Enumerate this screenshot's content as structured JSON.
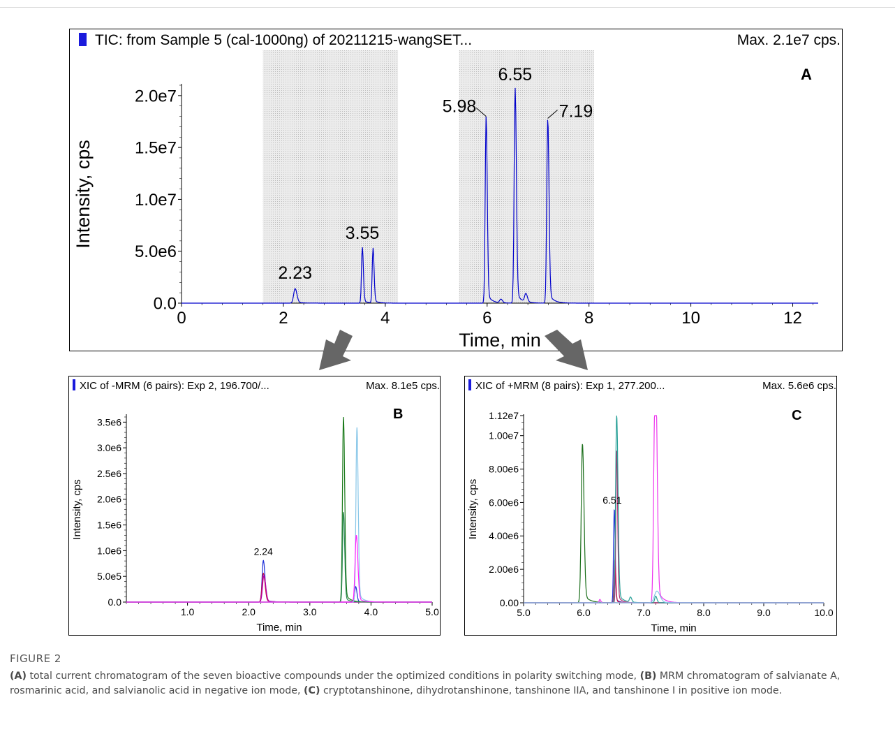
{
  "chart_data": [
    {
      "panel": "A",
      "type": "line",
      "title": "TIC: from Sample 5 (cal-1000ng) of 20211215-wangSET...",
      "max_label": "Max. 2.1e7 cps.",
      "xlabel": "Time, min",
      "ylabel": "Intensity, cps",
      "xlim": [
        0,
        12.5
      ],
      "ylim": [
        0,
        21000000.0
      ],
      "xticks": [
        0,
        2,
        4,
        6,
        8,
        10,
        12
      ],
      "xtick_labels": [
        "0",
        "2",
        "4",
        "6",
        "8",
        "10",
        "12"
      ],
      "yticks": [
        0,
        5000000,
        10000000,
        15000000,
        20000000
      ],
      "ytick_labels": [
        "0.0",
        "5.0e6",
        "1.0e7",
        "1.5e7",
        "2.0e7"
      ],
      "shaded_regions": [
        [
          1.6,
          4.25
        ],
        [
          5.45,
          8.1
        ]
      ],
      "color": "#0000cc",
      "peaks": [
        {
          "rt": 2.23,
          "height": 1400000,
          "w": 0.035
        },
        {
          "rt": 3.55,
          "height": 5400000,
          "w": 0.02
        },
        {
          "rt": 3.76,
          "height": 5300000,
          "w": 0.02
        },
        {
          "rt": 5.98,
          "height": 18000000,
          "w": 0.022
        },
        {
          "rt": 6.27,
          "height": 350000,
          "w": 0.03
        },
        {
          "rt": 6.55,
          "height": 20800000,
          "w": 0.024
        },
        {
          "rt": 6.76,
          "height": 800000,
          "w": 0.03
        },
        {
          "rt": 7.19,
          "height": 17800000,
          "w": 0.024
        }
      ],
      "annotations": [
        {
          "text": "2.23",
          "x": 2.23,
          "y": 1400000
        },
        {
          "text": "3.55",
          "x": 3.55,
          "y": 5400000
        },
        {
          "text": "5.98",
          "x": 5.98,
          "y": 18000000
        },
        {
          "text": "6.55",
          "x": 6.55,
          "y": 20800000
        },
        {
          "text": "7.19",
          "x": 7.19,
          "y": 17800000
        }
      ],
      "panel_letter": "A"
    },
    {
      "panel": "B",
      "type": "line",
      "title": "XIC of -MRM (6 pairs): Exp 2, 196.700/...",
      "max_label": "Max. 8.1e5 cps.",
      "xlabel": "Time, min",
      "ylabel": "Intensity, cps",
      "xlim": [
        0,
        5.0
      ],
      "ylim": [
        0,
        3600000
      ],
      "xticks": [
        1.0,
        2.0,
        3.0,
        4.0,
        5.0
      ],
      "xtick_labels": [
        "1.0",
        "2.0",
        "3.0",
        "4.0",
        "5.0"
      ],
      "yticks": [
        0,
        500000,
        1000000,
        1500000,
        2000000,
        2500000,
        3000000,
        3500000
      ],
      "ytick_labels": [
        "0.0",
        "5.0e5",
        "1.0e6",
        "1.5e6",
        "2.0e6",
        "2.5e6",
        "3.0e6",
        "3.5e6"
      ],
      "series": [
        {
          "color": "#1f2fd8",
          "peaks": [
            {
              "rt": 2.24,
              "height": 810000,
              "w": 0.025
            },
            {
              "rt": 3.75,
              "height": 300000,
              "w": 0.02
            }
          ]
        },
        {
          "color": "#cc1144",
          "peaks": [
            {
              "rt": 2.24,
              "height": 560000,
              "w": 0.027
            }
          ]
        },
        {
          "color": "#b000b0",
          "peaks": [
            {
              "rt": 2.25,
              "height": 520000,
              "w": 0.028
            }
          ]
        },
        {
          "color": "#1a7a1a",
          "peaks": [
            {
              "rt": 3.55,
              "height": 3600000,
              "w": 0.02
            }
          ]
        },
        {
          "color": "#2e8b57",
          "peaks": [
            {
              "rt": 3.55,
              "height": 1750000,
              "w": 0.019
            }
          ]
        },
        {
          "color": "#87c6e8",
          "peaks": [
            {
              "rt": 3.77,
              "height": 3400000,
              "w": 0.02
            }
          ]
        },
        {
          "color": "#ff22ff",
          "peaks": [
            {
              "rt": 3.76,
              "height": 1300000,
              "w": 0.025
            }
          ]
        }
      ],
      "annotations": [
        {
          "text": "2.24",
          "x": 2.24,
          "y": 810000
        }
      ],
      "panel_letter": "B"
    },
    {
      "panel": "C",
      "type": "line",
      "title": "XIC of +MRM (8 pairs): Exp 1, 277.200...",
      "max_label": "Max. 5.6e6 cps.",
      "xlabel": "Time, min",
      "ylabel": "Intensity, cps",
      "xlim": [
        5.0,
        10.0
      ],
      "ylim": [
        0,
        11200000
      ],
      "xticks": [
        5.0,
        6.0,
        7.0,
        8.0,
        9.0,
        10.0
      ],
      "xtick_labels": [
        "5.0",
        "6.0",
        "7.0",
        "8.0",
        "9.0",
        "10.0"
      ],
      "yticks": [
        0,
        2000000,
        4000000,
        6000000,
        8000000,
        10000000,
        11200000
      ],
      "ytick_labels": [
        "0.00",
        "2.00e6",
        "4.00e6",
        "6.00e6",
        "8.00e6",
        "1.00e7",
        "1.12e7"
      ],
      "series": [
        {
          "color": "#1a6e1a",
          "peaks": [
            {
              "rt": 5.98,
              "height": 9500000,
              "w": 0.025
            }
          ]
        },
        {
          "color": "#1f2fd8",
          "peaks": [
            {
              "rt": 6.51,
              "height": 5600000,
              "w": 0.015
            }
          ]
        },
        {
          "color": "#cc1144",
          "peaks": [
            {
              "rt": 6.52,
              "height": 2600000,
              "w": 0.015
            }
          ]
        },
        {
          "color": "#b03070",
          "peaks": [
            {
              "rt": 6.55,
              "height": 9100000,
              "w": 0.016
            }
          ]
        },
        {
          "color": "#2aa198",
          "peaks": [
            {
              "rt": 6.55,
              "height": 11200000,
              "w": 0.022
            },
            {
              "rt": 6.78,
              "height": 300000,
              "w": 0.02
            },
            {
              "rt": 7.2,
              "height": 400000,
              "w": 0.02
            }
          ]
        },
        {
          "color": "#ee33ee",
          "peaks": [
            {
              "rt": 6.27,
              "height": 200000,
              "w": 0.015
            },
            {
              "rt": 7.18,
              "height": 9200000,
              "w": 0.022
            },
            {
              "rt": 7.21,
              "height": 8800000,
              "w": 0.022
            }
          ]
        },
        {
          "color": "#87c6e8",
          "peaks": [
            {
              "rt": 7.22,
              "height": 700000,
              "w": 0.05
            }
          ]
        }
      ],
      "annotations": [
        {
          "text": "6.51",
          "x": 6.51,
          "y": 5600000
        }
      ],
      "panel_letter": "C"
    }
  ],
  "figure": {
    "label": "FIGURE 2",
    "caption_segments": [
      {
        "text": "(A)",
        "bold": true
      },
      {
        "text": " total current chromatogram of the seven bioactive compounds under the optimized conditions in polarity switching mode, ",
        "bold": false
      },
      {
        "text": "(B)",
        "bold": true
      },
      {
        "text": " MRM chromatogram of salvianate A, rosmarinic acid, and salvianolic acid in negative ion mode, ",
        "bold": false
      },
      {
        "text": "(C)",
        "bold": true
      },
      {
        "text": " cryptotanshinone, dihydrotanshinone, tanshinone IIA, and tanshinone I in positive ion mode.",
        "bold": false
      }
    ]
  }
}
